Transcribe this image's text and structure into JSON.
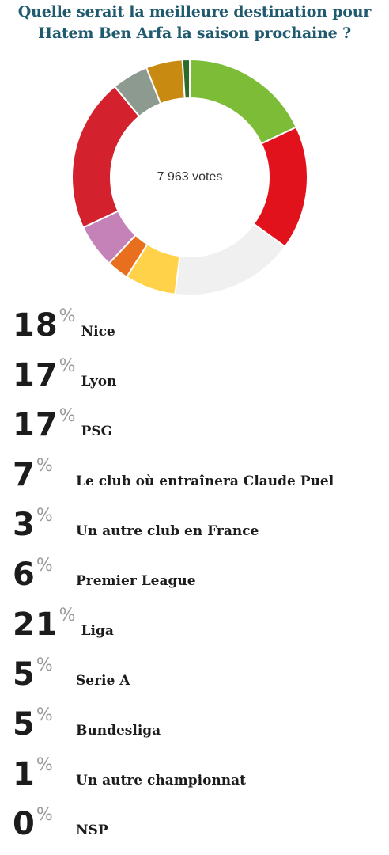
{
  "title_lines": [
    "Quelle serait la meilleure destination pour",
    "Hatem Ben Arfa la saison prochaine ?"
  ],
  "chart_data": {
    "type": "pie",
    "center_label": "7 963 votes",
    "categories": [
      "Nice",
      "Lyon",
      "PSG",
      "Le club où entraînera Claude Puel",
      "Un autre club en France",
      "Premier League",
      "Liga",
      "Serie A",
      "Bundesliga",
      "Un autre championnat",
      "NSP"
    ],
    "values": [
      18,
      17,
      17,
      7,
      3,
      6,
      21,
      5,
      5,
      1,
      0
    ],
    "value_suffix": "%",
    "colors": [
      "#7cbc37",
      "#e2121d",
      "#f0f0f0",
      "#ffd24a",
      "#e86f1d",
      "#c482b9",
      "#d3222e",
      "#8c9a90",
      "#c98a12",
      "#2c6b2c",
      "#1a1a1a"
    ]
  }
}
